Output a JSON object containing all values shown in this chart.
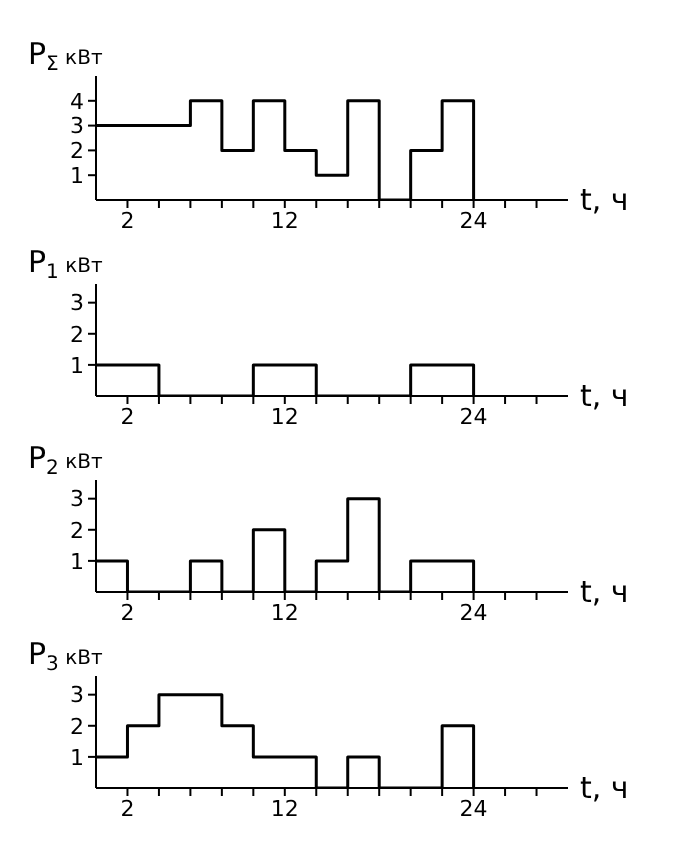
{
  "chart_data": [
    {
      "type": "step",
      "ylabel": "P$_{Σ}$ кВт",
      "xlabel": "t, ч",
      "x": [
        0,
        2,
        4,
        6,
        8,
        10,
        12,
        14,
        16,
        18,
        20,
        22,
        24
      ],
      "values": [
        3,
        3,
        3,
        4,
        2,
        4,
        2,
        1,
        4,
        0,
        2,
        4,
        0
      ],
      "color": "#000000",
      "xlim": [
        0,
        30
      ],
      "ylim": [
        0,
        5
      ],
      "yticks": [
        1,
        2,
        3,
        4
      ],
      "xticks": [
        2,
        {
          "value": 4,
          "label": null
        },
        {
          "value": 6,
          "label": null
        },
        {
          "value": 8,
          "label": null
        },
        {
          "value": 10,
          "label": null
        },
        12,
        {
          "value": 14,
          "label": null
        },
        {
          "value": 16,
          "label": null
        },
        {
          "value": 18,
          "label": null
        },
        {
          "value": 20,
          "label": null
        },
        {
          "value": 22,
          "label": null
        },
        24,
        {
          "value": 26,
          "label": null
        },
        {
          "value": 28,
          "label": null
        }
      ]
    },
    {
      "type": "step",
      "ylabel": "P$_{1}$ кВт",
      "xlabel": "t, ч",
      "x": [
        0,
        2,
        4,
        6,
        8,
        10,
        12,
        14,
        16,
        18,
        20,
        22,
        24
      ],
      "values": [
        1,
        1,
        0,
        0,
        0,
        1,
        1,
        0,
        0,
        0,
        1,
        1,
        0
      ],
      "color": "#000000",
      "xlim": [
        0,
        30
      ],
      "ylim": [
        0,
        3.6
      ],
      "yticks": [
        1,
        2,
        3
      ],
      "xticks": [
        2,
        {
          "value": 4,
          "label": null
        },
        {
          "value": 6,
          "label": null
        },
        {
          "value": 8,
          "label": null
        },
        {
          "value": 10,
          "label": null
        },
        12,
        {
          "value": 14,
          "label": null
        },
        {
          "value": 16,
          "label": null
        },
        {
          "value": 18,
          "label": null
        },
        {
          "value": 20,
          "label": null
        },
        {
          "value": 22,
          "label": null
        },
        24,
        {
          "value": 26,
          "label": null
        },
        {
          "value": 28,
          "label": null
        }
      ]
    },
    {
      "type": "step",
      "ylabel": "P$_{2}$ кВт",
      "xlabel": "t, ч",
      "x": [
        0,
        2,
        4,
        6,
        8,
        10,
        12,
        14,
        16,
        18,
        20,
        22,
        24
      ],
      "values": [
        1,
        0,
        0,
        1,
        0,
        2,
        0,
        1,
        3,
        0,
        1,
        1,
        0
      ],
      "color": "#000000",
      "xlim": [
        0,
        30
      ],
      "ylim": [
        0,
        3.6
      ],
      "yticks": [
        1,
        2,
        3
      ],
      "xticks": [
        2,
        {
          "value": 4,
          "label": null
        },
        {
          "value": 6,
          "label": null
        },
        {
          "value": 8,
          "label": null
        },
        {
          "value": 10,
          "label": null
        },
        12,
        {
          "value": 14,
          "label": null
        },
        {
          "value": 16,
          "label": null
        },
        {
          "value": 18,
          "label": null
        },
        {
          "value": 20,
          "label": null
        },
        {
          "value": 22,
          "label": null
        },
        24,
        {
          "value": 26,
          "label": null
        },
        {
          "value": 28,
          "label": null
        }
      ]
    },
    {
      "type": "step",
      "ylabel": "P$_{3}$ кВт",
      "xlabel": "t, ч",
      "x": [
        0,
        2,
        4,
        6,
        8,
        10,
        12,
        14,
        16,
        18,
        20,
        22,
        24
      ],
      "values": [
        1,
        2,
        3,
        3,
        2,
        1,
        1,
        0,
        1,
        0,
        0,
        2,
        0
      ],
      "color": "#000000",
      "xlim": [
        0,
        30
      ],
      "ylim": [
        0,
        3.6
      ],
      "yticks": [
        1,
        2,
        3
      ],
      "xticks": [
        2,
        {
          "value": 4,
          "label": null
        },
        {
          "value": 6,
          "label": null
        },
        {
          "value": 8,
          "label": null
        },
        {
          "value": 10,
          "label": null
        },
        12,
        {
          "value": 14,
          "label": null
        },
        {
          "value": 16,
          "label": null
        },
        {
          "value": 18,
          "label": null
        },
        {
          "value": 20,
          "label": null
        },
        {
          "value": 22,
          "label": null
        },
        24,
        {
          "value": 26,
          "label": null
        },
        {
          "value": 28,
          "label": null
        }
      ]
    }
  ]
}
